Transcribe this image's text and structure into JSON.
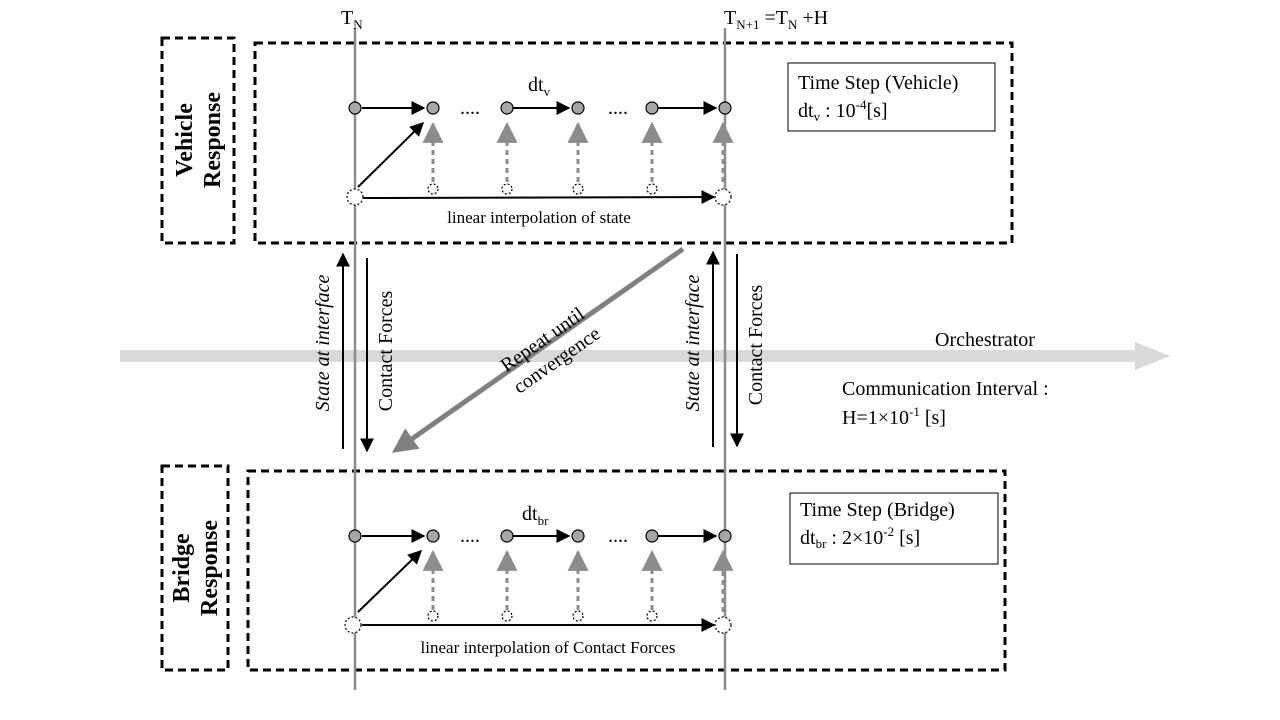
{
  "time_labels": {
    "tn_main": "T",
    "tn_sub": "N",
    "tn1_main": "T",
    "tn1_sub": "N+1",
    "tn1_eq": " =T",
    "tn1_eq_sub": "N",
    "tn1_tail": " +H"
  },
  "vehicle": {
    "section_line1": "Vehicle",
    "section_line2": "Response",
    "step_label_main": "dt",
    "step_label_sub": "v",
    "dots": "....",
    "box_title": "Time Step (Vehicle)",
    "box_value_main": "dt",
    "box_value_sub": "v",
    "box_value_rest": " : 10",
    "box_value_exp": "-4",
    "box_value_unit": "[s]",
    "interp_label": "linear interpolation of state"
  },
  "bridge": {
    "section_line1": "Bridge",
    "section_line2": "Response",
    "step_label_main": "dt",
    "step_label_sub": "br",
    "dots": "....",
    "box_title": "Time Step (Bridge)",
    "box_value_main": "dt",
    "box_value_sub": "br",
    "box_value_rest": " : 2×10",
    "box_value_exp": "-2",
    "box_value_unit": " [s]",
    "interp_label": "linear interpolation of Contact Forces"
  },
  "exchange": {
    "state_label": "State at interface",
    "forces_label": "Contact Forces"
  },
  "iteration": {
    "line1": "Repeat until",
    "line2": "convergence"
  },
  "orchestrator": {
    "label": "Orchestrator",
    "interval_title": "Communication Interval :",
    "interval_value_main": "H=1×10",
    "interval_value_exp": "-1",
    "interval_value_unit": " [s]"
  },
  "colors": {
    "axis_gray": "#d9d9d9",
    "line_gray": "#8c8c8c",
    "dot_fill": "#a6a6a6",
    "dashed_arrow": "#8c8c8c",
    "diag_arrow": "#808080"
  }
}
